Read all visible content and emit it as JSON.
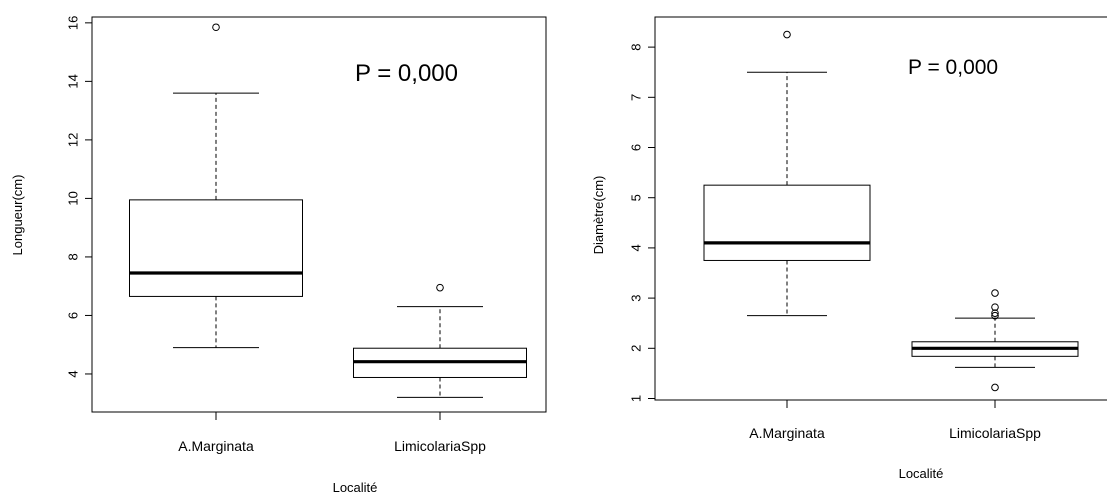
{
  "chart_data": [
    {
      "type": "boxplot",
      "xlabel": "Localité",
      "ylabel": "Longueur(cm)",
      "ylim": [
        2.7,
        16.2
      ],
      "yticks": [
        4,
        6,
        8,
        10,
        12,
        14,
        16
      ],
      "ytick_labels": [
        "4",
        "6",
        "8",
        "10",
        "12",
        "14",
        "16"
      ],
      "annotation": "P = 0,000",
      "categories": [
        "A.Marginata",
        "LimicolariaSpp"
      ],
      "boxes": [
        {
          "category": "A.Marginata",
          "whisker_low": 4.9,
          "q1": 6.65,
          "median": 7.45,
          "q3": 9.95,
          "whisker_high": 13.6,
          "outliers": [
            15.85
          ]
        },
        {
          "category": "LimicolariaSpp",
          "whisker_low": 3.2,
          "q1": 3.88,
          "median": 4.42,
          "q3": 4.88,
          "whisker_high": 6.3,
          "outliers": [
            6.95
          ]
        }
      ]
    },
    {
      "type": "boxplot",
      "xlabel": "Localité",
      "ylabel": "Diamètre(cm)",
      "ylim": [
        0.97,
        8.6
      ],
      "yticks": [
        1,
        2,
        3,
        4,
        5,
        6,
        7,
        8
      ],
      "ytick_labels": [
        "1",
        "2",
        "3",
        "4",
        "5",
        "6",
        "7",
        "8"
      ],
      "annotation": "P = 0,000",
      "categories": [
        "A.Marginata",
        "LimicolariaSpp"
      ],
      "boxes": [
        {
          "category": "A.Marginata",
          "whisker_low": 2.65,
          "q1": 3.75,
          "median": 4.1,
          "q3": 5.25,
          "whisker_high": 7.5,
          "outliers": [
            8.25
          ]
        },
        {
          "category": "LimicolariaSpp",
          "whisker_low": 1.62,
          "q1": 1.84,
          "median": 2.0,
          "q3": 2.13,
          "whisker_high": 2.6,
          "outliers": [
            3.1,
            2.82,
            2.7,
            2.65,
            1.22
          ]
        }
      ]
    }
  ]
}
